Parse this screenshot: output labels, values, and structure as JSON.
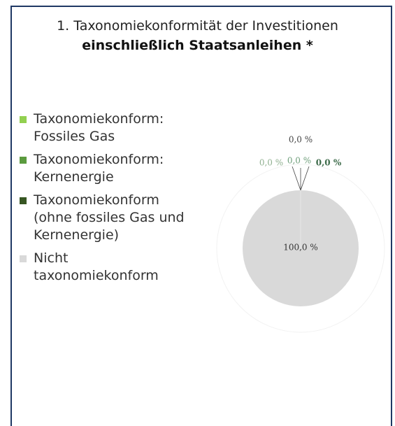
{
  "chart_data": {
    "type": "pie",
    "title": "1. Taxonomiekonformität der Investitionen",
    "subtitle": "einschließlich Staatsanleihen *",
    "series": [
      {
        "name": "Taxonomiekonform: Fossiles Gas",
        "color": "#92d050",
        "values": [
          0
        ],
        "value_labels": [
          "0,0 %"
        ]
      },
      {
        "name": "Taxonomiekonform: Kernenergie",
        "color": "#5b9b3f",
        "values": [
          0
        ],
        "value_labels": [
          "0,0 %"
        ]
      },
      {
        "name": "Taxonomiekonform (ohne fossiles Gas und Kernenergie)",
        "color": "#375623",
        "values": [
          0
        ],
        "value_labels": [
          "0,0 %"
        ]
      },
      {
        "name": "Nicht taxonomiekonform",
        "color": "#d9d9d9",
        "values": [
          100
        ],
        "value_labels": [
          "100,0 %"
        ]
      }
    ],
    "annotations": [
      "0,0 %"
    ],
    "legend": "left"
  }
}
